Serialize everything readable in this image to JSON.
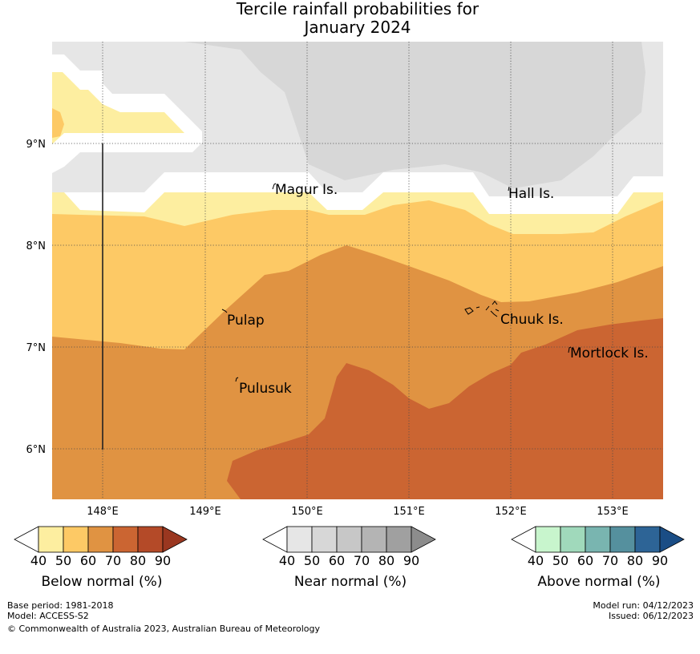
{
  "title": {
    "line1": "Tercile rainfall probabilities for",
    "line2": "January 2024"
  },
  "map": {
    "lon_ticks": [
      "148°E",
      "149°E",
      "150°E",
      "151°E",
      "152°E",
      "153°E"
    ],
    "lat_ticks": [
      "9°N",
      "8°N",
      "7°N",
      "6°N"
    ],
    "places": [
      {
        "name": "Magur Is."
      },
      {
        "name": "Hall Is."
      },
      {
        "name": "Pulap"
      },
      {
        "name": "Chuuk Is."
      },
      {
        "name": "Mortlock Is."
      },
      {
        "name": "Pulusuk"
      }
    ]
  },
  "legends": {
    "below": {
      "label": "Below normal (%)",
      "ticks": [
        "40",
        "50",
        "60",
        "70",
        "80",
        "90"
      ],
      "colors": [
        "#ffffff",
        "#fdeea0",
        "#fdc965",
        "#e09342",
        "#cb6532",
        "#b44a28",
        "#9a3720"
      ]
    },
    "near": {
      "label": "Near normal (%)",
      "ticks": [
        "40",
        "50",
        "60",
        "70",
        "80",
        "90"
      ],
      "colors": [
        "#ffffff",
        "#e6e6e6",
        "#d7d7d7",
        "#c7c7c7",
        "#b4b4b4",
        "#a0a0a0",
        "#8c8c8c"
      ]
    },
    "above": {
      "label": "Above normal (%)",
      "ticks": [
        "40",
        "50",
        "60",
        "70",
        "80",
        "90"
      ],
      "colors": [
        "#ffffff",
        "#c8f5cd",
        "#a0d9bb",
        "#79b5b0",
        "#55909e",
        "#2d6496",
        "#1a4d85"
      ]
    }
  },
  "footer": {
    "base_period": "Base period: 1981-2018",
    "model": "Model: ACCESS-S2",
    "copyright": "© Commonwealth of Australia 2023, Australian Bureau of Meteorology",
    "model_run": "Model run: 04/12/2023",
    "issued": "Issued: 06/12/2023"
  }
}
